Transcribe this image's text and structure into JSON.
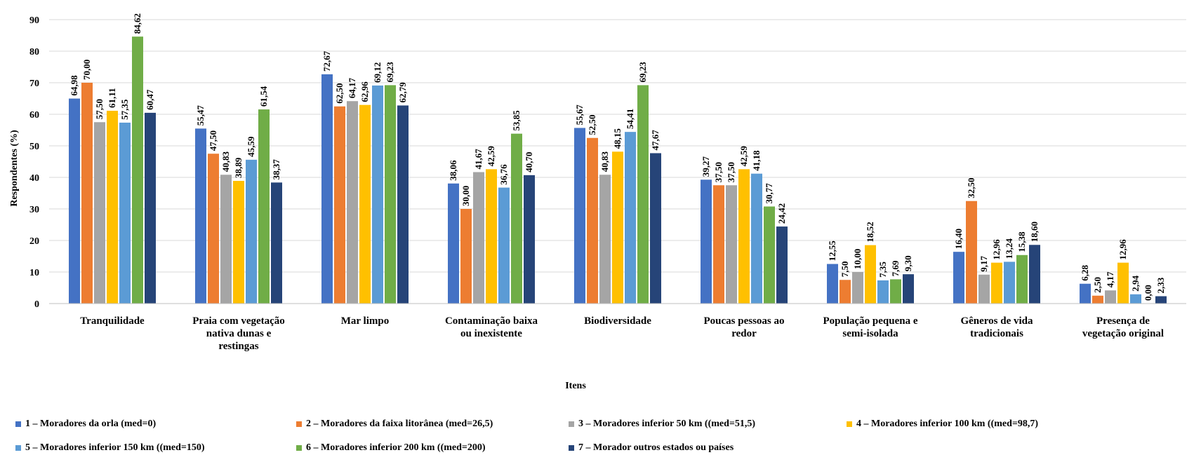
{
  "chart_data": {
    "type": "bar",
    "ylabel": "Respondentes (%)",
    "xlabel": "Itens",
    "ylim": [
      0,
      90
    ],
    "yticks": [
      "0",
      "10",
      "20",
      "30",
      "40",
      "50",
      "60",
      "70",
      "80",
      "90"
    ],
    "grid": true,
    "legend_position": "bottom",
    "categories": [
      [
        "Tranquilidade"
      ],
      [
        "Praia com vegetação",
        "nativa dunas e",
        "restingas"
      ],
      [
        "Mar limpo"
      ],
      [
        "Contaminação baixa",
        "ou inexistente"
      ],
      [
        "Biodiversidade"
      ],
      [
        "Poucas pessoas ao",
        "redor"
      ],
      [
        "População pequena e",
        "semi-isolada"
      ],
      [
        "Gêneros de vida",
        "tradicionais"
      ],
      [
        "Presença de",
        "vegetação original"
      ]
    ],
    "series": [
      {
        "name": "1 – Moradores da orla (med=0)",
        "color": "#4472c4",
        "values": [
          64.98,
          55.47,
          72.67,
          38.06,
          55.67,
          39.27,
          12.55,
          16.4,
          6.28
        ],
        "labels": [
          "64,98",
          "55,47",
          "72,67",
          "38,06",
          "55,67",
          "39,27",
          "12,55",
          "16,40",
          "6,28"
        ]
      },
      {
        "name": "2 – Moradores da faixa litorânea (med=26,5)",
        "color": "#ed7d31",
        "values": [
          70.0,
          47.5,
          62.5,
          30.0,
          52.5,
          37.5,
          7.5,
          32.5,
          2.5
        ],
        "labels": [
          "70,00",
          "47,50",
          "62,50",
          "30,00",
          "52,50",
          "37,50",
          "7,50",
          "32,50",
          "2,50"
        ]
      },
      {
        "name": "3 – Moradores inferior 50 km ((med=51,5)",
        "color": "#a5a5a5",
        "values": [
          57.5,
          40.83,
          64.17,
          41.67,
          40.83,
          37.5,
          10.0,
          9.17,
          4.17
        ],
        "labels": [
          "57,50",
          "40,83",
          "64,17",
          "41,67",
          "40,83",
          "37,50",
          "10,00",
          "9,17",
          "4,17"
        ]
      },
      {
        "name": "4 – Moradores inferior 100 km ((med=98,7)",
        "color": "#ffc000",
        "values": [
          61.11,
          38.89,
          62.96,
          42.59,
          48.15,
          42.59,
          18.52,
          12.96,
          12.96
        ],
        "labels": [
          "61,11",
          "38,89",
          "62,96",
          "42,59",
          "48,15",
          "42,59",
          "18,52",
          "12,96",
          "12,96"
        ]
      },
      {
        "name": "5 – Moradores inferior 150 km ((med=150)",
        "color": "#5b9bd5",
        "values": [
          57.35,
          45.59,
          69.12,
          36.76,
          54.41,
          41.18,
          7.35,
          13.24,
          2.94
        ],
        "labels": [
          "57,35",
          "45,59",
          "69,12",
          "36,76",
          "54,41",
          "41,18",
          "7,35",
          "13,24",
          "2,94"
        ]
      },
      {
        "name": "6 – Moradores inferior 200 km ((med=200)",
        "color": "#70ad47",
        "values": [
          84.62,
          61.54,
          69.23,
          53.85,
          69.23,
          30.77,
          7.69,
          15.38,
          0.0
        ],
        "labels": [
          "84,62",
          "61,54",
          "69,23",
          "53,85",
          "69,23",
          "30,77",
          "7,69",
          "15,38",
          "0,00"
        ]
      },
      {
        "name": "7 – Morador outros estados ou países",
        "color": "#264478",
        "values": [
          60.47,
          38.37,
          62.79,
          40.7,
          47.67,
          24.42,
          9.3,
          18.6,
          2.33
        ],
        "labels": [
          "60,47",
          "38,37",
          "62,79",
          "40,70",
          "47,67",
          "24,42",
          "9,30",
          "18,60",
          "2,33"
        ]
      }
    ]
  },
  "legend": {
    "rows": [
      [
        0,
        1,
        2,
        3
      ],
      [
        4,
        5,
        6
      ]
    ]
  }
}
